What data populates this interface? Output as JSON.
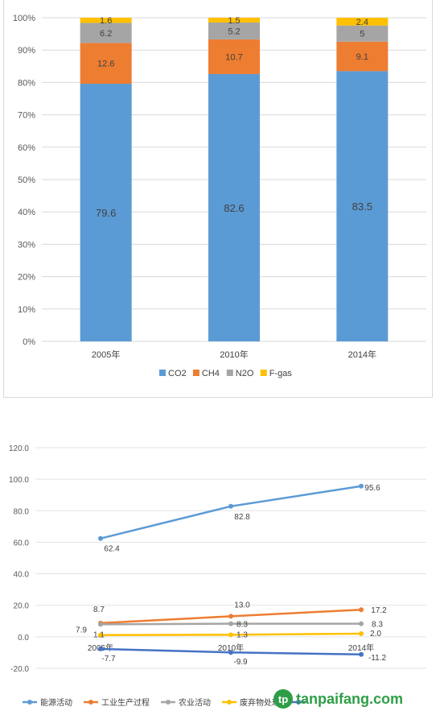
{
  "chart_data": [
    {
      "type": "bar",
      "stacked": true,
      "categories": [
        "2005年",
        "2010年",
        "2014年"
      ],
      "series": [
        {
          "name": "CO2",
          "color": "#5b9bd5",
          "values": [
            79.6,
            82.6,
            83.5
          ]
        },
        {
          "name": "CH4",
          "color": "#ed7d31",
          "values": [
            12.6,
            10.7,
            9.1
          ]
        },
        {
          "name": "N2O",
          "color": "#a5a5a5",
          "values": [
            6.2,
            5.2,
            5.0
          ]
        },
        {
          "name": "F-gas",
          "color": "#ffc000",
          "values": [
            1.6,
            1.5,
            2.4
          ]
        }
      ],
      "yticks": [
        "0%",
        "10%",
        "20%",
        "30%",
        "40%",
        "50%",
        "60%",
        "70%",
        "80%",
        "90%",
        "100%"
      ],
      "ylim": [
        0,
        100
      ],
      "legend": "bottom"
    },
    {
      "type": "line",
      "categories": [
        "2005年",
        "2010年",
        "2014年"
      ],
      "series": [
        {
          "name": "能源活动",
          "color": "#5b9bd5",
          "values": [
            62.4,
            82.8,
            95.6
          ]
        },
        {
          "name": "工业生产过程",
          "color": "#ed7d31",
          "values": [
            8.7,
            13.0,
            17.2
          ]
        },
        {
          "name": "农业活动",
          "color": "#a5a5a5",
          "values": [
            7.9,
            8.3,
            8.3
          ]
        },
        {
          "name": "废弃物处理",
          "color": "#ffc000",
          "values": [
            1.1,
            1.3,
            2.0
          ]
        },
        {
          "name": "",
          "color": "#4472c4",
          "values": [
            -7.7,
            -9.9,
            -11.2
          ]
        }
      ],
      "yticks": [
        "-20.0",
        "0.0",
        "20.0",
        "40.0",
        "60.0",
        "80.0",
        "100.0",
        "120.0"
      ],
      "ylim": [
        -20,
        120
      ],
      "data_labels": [
        [
          "62.4",
          "82.8",
          "95.6"
        ],
        [
          "8.7",
          "13.0",
          "17.2"
        ],
        [
          "7.9",
          "8.3",
          "8.3"
        ],
        [
          "1.1",
          "1.3",
          "2.0"
        ],
        [
          "-7.7",
          "-9.9",
          "-11.2"
        ]
      ],
      "legend": "bottom"
    }
  ],
  "watermark": {
    "mark": "tp",
    "text": "tanpaifang.com"
  }
}
